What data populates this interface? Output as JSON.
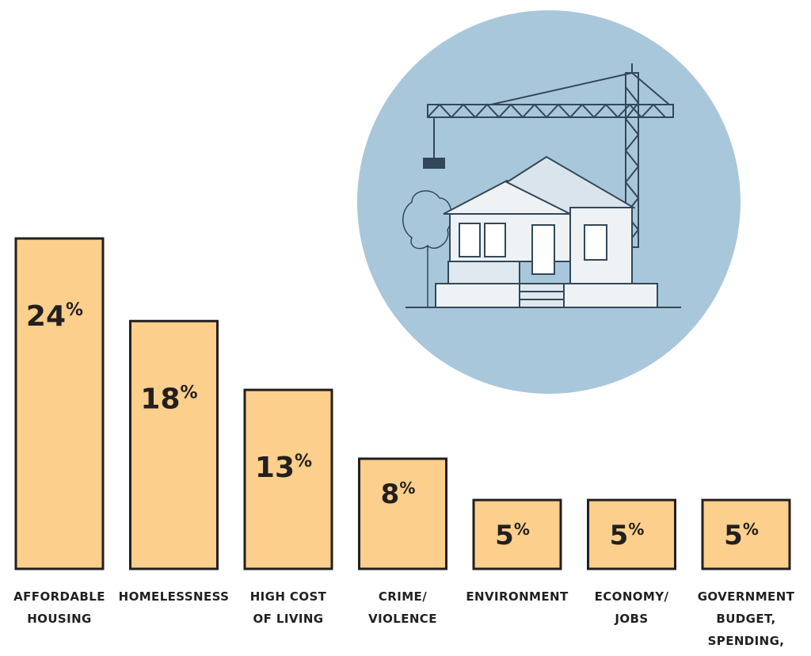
{
  "chart_data": {
    "type": "bar",
    "categories": [
      [
        "AFFORDABLE",
        "HOUSING"
      ],
      [
        "HOMELESSNESS"
      ],
      [
        "HIGH COST",
        "OF LIVING"
      ],
      [
        "CRIME/",
        "VIOLENCE"
      ],
      [
        "ENVIRONMENT"
      ],
      [
        "ECONOMY/",
        "JOBS"
      ],
      [
        "GOVERNMENT",
        "BUDGET,",
        "SPENDING,"
      ]
    ],
    "values": [
      24,
      18,
      13,
      8,
      5,
      5,
      5
    ],
    "value_labels": [
      "24",
      "18",
      "13",
      "8",
      "5",
      "5",
      "5"
    ],
    "value_suffix": "%",
    "ylim": [
      0,
      24
    ],
    "grid": false,
    "legend": "none",
    "colors": {
      "bar_fill": "#fccf8c",
      "bar_stroke": "#231f20",
      "text": "#231f20",
      "illustration_circle": "#a9c7da",
      "illustration_line": "#33475a",
      "house_fill": "#eef2f5"
    }
  },
  "illustration": {
    "icon": "house-construction-crane-illustration"
  }
}
